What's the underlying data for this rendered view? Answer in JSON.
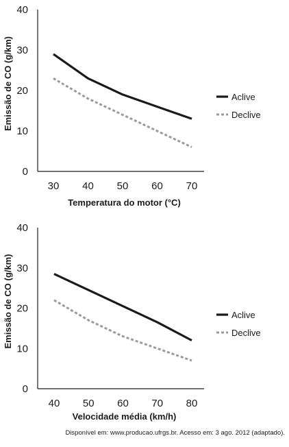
{
  "chart_data": [
    {
      "type": "line",
      "xlabel": "Temperatura do motor (°C)",
      "ylabel": "Emissão de CO (g/km)",
      "x": [
        30,
        40,
        50,
        60,
        70
      ],
      "xlim": [
        30,
        70
      ],
      "ylim": [
        0,
        40
      ],
      "yticks": [
        0,
        10,
        20,
        30,
        40
      ],
      "grid": false,
      "legend_position": "right",
      "series": [
        {
          "name": "Aclive",
          "values": [
            29,
            23,
            19,
            16,
            13
          ],
          "color": "#1a1a1a",
          "style": "solid"
        },
        {
          "name": "Declive",
          "values": [
            23,
            18,
            14,
            10,
            6
          ],
          "color": "#9a9a9a",
          "style": "dotted"
        }
      ]
    },
    {
      "type": "line",
      "xlabel": "Velocidade média (km/h)",
      "ylabel": "Emissão de CO (g/km)",
      "x": [
        40,
        50,
        60,
        70,
        80
      ],
      "xlim": [
        40,
        80
      ],
      "ylim": [
        0,
        40
      ],
      "yticks": [
        0,
        10,
        20,
        30,
        40
      ],
      "grid": false,
      "legend_position": "right",
      "series": [
        {
          "name": "Aclive",
          "values": [
            28.5,
            24.5,
            20.5,
            16.5,
            12
          ],
          "color": "#1a1a1a",
          "style": "solid"
        },
        {
          "name": "Declive",
          "values": [
            22,
            17,
            13,
            10,
            7
          ],
          "color": "#9a9a9a",
          "style": "dotted"
        }
      ]
    }
  ],
  "source_note": "Disponível em: www.producao.ufrgs.br. Acesso em: 3 ago. 2012 (adaptado)."
}
